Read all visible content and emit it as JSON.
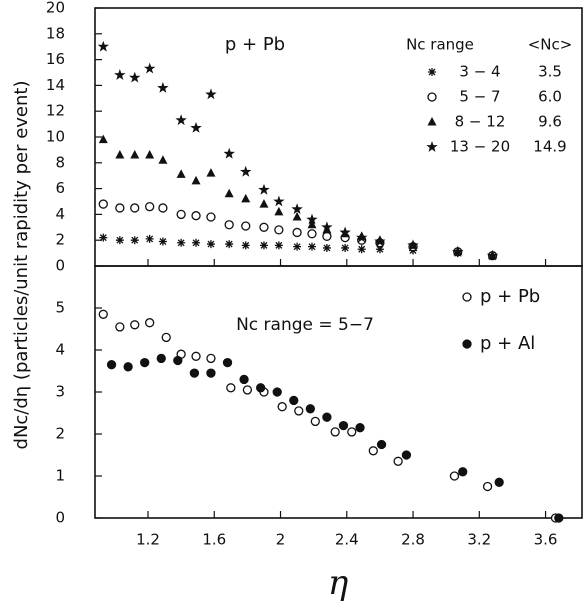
{
  "chart_data": [
    {
      "type": "scatter",
      "annotation": "p + Pb",
      "legend_title": "Nc range",
      "legend_mean_title": "<Nc>",
      "ylabel": "dNc/dη (particles/unit rapidity per event)",
      "xlim": [
        0.88,
        3.82
      ],
      "ylim": [
        0,
        20
      ],
      "yticks": [
        0,
        2,
        4,
        6,
        8,
        10,
        12,
        14,
        16,
        18,
        20
      ],
      "x": [
        0.93,
        1.03,
        1.12,
        1.21,
        1.29,
        1.4,
        1.49,
        1.58,
        1.69,
        1.79,
        1.9,
        1.99,
        2.1,
        2.19,
        2.28,
        2.39,
        2.49,
        2.6,
        2.8,
        3.07,
        3.28
      ],
      "series": [
        {
          "name": "3 − 4",
          "mean": "3.5",
          "marker": "asterisk",
          "color": "#111111",
          "values": [
            2.2,
            2.0,
            2.0,
            2.1,
            1.9,
            1.8,
            1.8,
            1.7,
            1.7,
            1.6,
            1.6,
            1.6,
            1.5,
            1.5,
            1.4,
            1.4,
            1.3,
            1.3,
            1.2,
            1.0,
            0.8
          ]
        },
        {
          "name": "5 − 7",
          "mean": "6.0",
          "marker": "open-circle",
          "color": "#111111",
          "values": [
            4.8,
            4.5,
            4.5,
            4.6,
            4.5,
            4.0,
            3.9,
            3.8,
            3.2,
            3.1,
            3.0,
            2.8,
            2.6,
            2.5,
            2.3,
            2.2,
            2.0,
            1.8,
            1.5,
            1.1,
            0.8
          ]
        },
        {
          "name": "8 − 12",
          "mean": "9.6",
          "marker": "triangle",
          "color": "#111111",
          "values": [
            9.8,
            8.6,
            8.6,
            8.6,
            8.2,
            7.1,
            6.6,
            7.2,
            5.6,
            5.2,
            4.8,
            4.2,
            3.8,
            3.2,
            2.8,
            2.5,
            2.3,
            2.0,
            1.6,
            1.1,
            0.8
          ]
        },
        {
          "name": "13 − 20",
          "mean": "14.9",
          "marker": "star",
          "color": "#111111",
          "values": [
            17.0,
            14.8,
            14.6,
            15.3,
            13.8,
            11.3,
            10.7,
            13.3,
            8.7,
            7.3,
            5.9,
            5.0,
            4.4,
            3.6,
            3.0,
            2.6,
            2.2,
            1.9,
            1.6,
            1.1,
            0.8
          ]
        }
      ]
    },
    {
      "type": "scatter",
      "annotation": "Nc range = 5−7",
      "xlabel": "η",
      "xlim": [
        0.88,
        3.82
      ],
      "xticks": [
        1.2,
        1.6,
        2,
        2.4,
        2.8,
        3.2,
        3.6
      ],
      "ylim": [
        0,
        6
      ],
      "yticks": [
        0,
        1,
        2,
        3,
        4,
        5
      ],
      "series": [
        {
          "name": "p + Pb",
          "marker": "open-circle",
          "color": "#111111",
          "x": [
            0.93,
            1.03,
            1.12,
            1.21,
            1.31,
            1.4,
            1.49,
            1.58,
            1.7,
            1.8,
            1.9,
            2.01,
            2.11,
            2.21,
            2.33,
            2.43,
            2.56,
            2.71,
            3.05,
            3.25,
            3.66
          ],
          "values": [
            4.85,
            4.55,
            4.6,
            4.65,
            4.3,
            3.9,
            3.85,
            3.8,
            3.1,
            3.05,
            3.0,
            2.65,
            2.55,
            2.3,
            2.05,
            2.05,
            1.6,
            1.35,
            1.0,
            0.75,
            0
          ]
        },
        {
          "name": "p + Al",
          "marker": "dot",
          "color": "#111111",
          "x": [
            0.98,
            1.08,
            1.18,
            1.28,
            1.38,
            1.48,
            1.58,
            1.68,
            1.78,
            1.88,
            1.98,
            2.08,
            2.18,
            2.28,
            2.38,
            2.48,
            2.61,
            2.76,
            3.1,
            3.32,
            3.68
          ],
          "values": [
            3.65,
            3.6,
            3.7,
            3.8,
            3.75,
            3.45,
            3.45,
            3.7,
            3.3,
            3.1,
            3.0,
            2.8,
            2.6,
            2.4,
            2.2,
            2.15,
            1.75,
            1.5,
            1.1,
            0.85,
            0
          ]
        }
      ]
    }
  ]
}
